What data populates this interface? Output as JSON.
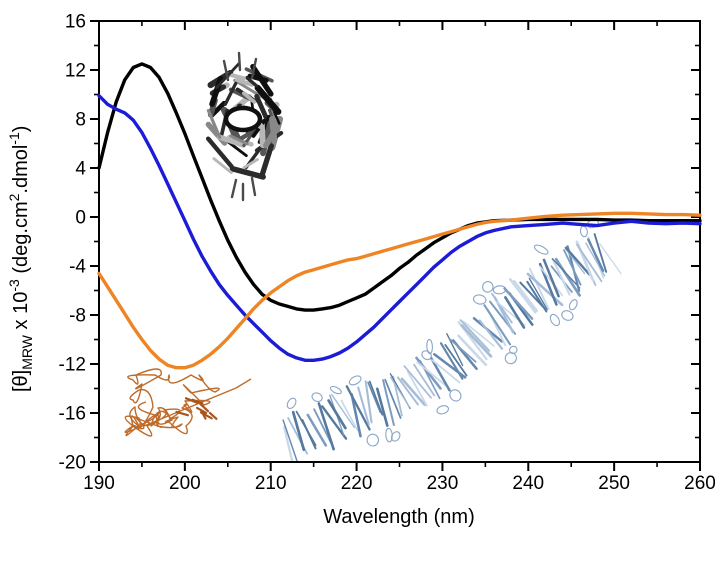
{
  "figure": {
    "background": "#ffffff",
    "type_note": "circular dichroism spectra figure, no legend, box axes with inward top/right ticks"
  },
  "x_axis": {
    "label": "Wavelength (nm)",
    "range": [
      190,
      260
    ],
    "ticks_major": [
      190,
      200,
      210,
      220,
      230,
      240,
      250,
      260
    ],
    "ticks_minor": [
      195,
      205,
      215,
      225,
      235,
      245,
      255
    ]
  },
  "y_axis": {
    "label_text": "[θ]MRW x 10-3 (deg.cm2.dmol-1)",
    "label_parts": {
      "p1": "[θ]",
      "sub": "MRW",
      "p2": " x 10",
      "sup1": "-3",
      "p3": " (deg.cm",
      "sup2": "2",
      "p4": ".dmol",
      "sup3": "-1",
      "p5": ")"
    },
    "range": [
      -20,
      16
    ],
    "ticks_major": [
      16,
      12,
      8,
      4,
      0,
      -4,
      -8,
      -12,
      -16,
      -20
    ],
    "ticks_minor": [
      14,
      10,
      6,
      2,
      -2,
      -6,
      -10,
      -14,
      -18
    ]
  },
  "chart_data": {
    "type": "line",
    "title": "",
    "xlabel": "Wavelength (nm)",
    "ylabel": "[θ]MRW x 10-3 (deg.cm2.dmol-1)",
    "xlim": [
      190,
      260
    ],
    "ylim": [
      -20,
      16
    ],
    "grid": false,
    "legend": "none",
    "series": [
      {
        "name": "black-spectrum-curve",
        "color": "#000000",
        "points": [
          [
            190,
            4.0
          ],
          [
            191,
            6.9
          ],
          [
            192,
            9.4
          ],
          [
            193,
            11.2
          ],
          [
            194,
            12.2
          ],
          [
            195,
            12.5
          ],
          [
            196,
            12.2
          ],
          [
            197,
            11.4
          ],
          [
            198,
            10.1
          ],
          [
            199,
            8.5
          ],
          [
            200,
            6.8
          ],
          [
            201,
            5.0
          ],
          [
            202,
            3.2
          ],
          [
            203,
            1.4
          ],
          [
            204,
            -0.3
          ],
          [
            205,
            -1.9
          ],
          [
            206,
            -3.3
          ],
          [
            207,
            -4.5
          ],
          [
            208,
            -5.5
          ],
          [
            209,
            -6.3
          ],
          [
            210,
            -6.8
          ],
          [
            211,
            -7.1
          ],
          [
            212,
            -7.3
          ],
          [
            213,
            -7.5
          ],
          [
            214,
            -7.6
          ],
          [
            215,
            -7.6
          ],
          [
            216,
            -7.5
          ],
          [
            217,
            -7.4
          ],
          [
            218,
            -7.2
          ],
          [
            219,
            -6.9
          ],
          [
            220,
            -6.6
          ],
          [
            221,
            -6.3
          ],
          [
            222,
            -5.8
          ],
          [
            223,
            -5.3
          ],
          [
            224,
            -4.8
          ],
          [
            225,
            -4.2
          ],
          [
            226,
            -3.7
          ],
          [
            227,
            -3.1
          ],
          [
            228,
            -2.6
          ],
          [
            229,
            -2.1
          ],
          [
            230,
            -1.7
          ],
          [
            231,
            -1.3
          ],
          [
            232,
            -1.0
          ],
          [
            233,
            -0.7
          ],
          [
            234,
            -0.5
          ],
          [
            235,
            -0.4
          ],
          [
            236,
            -0.3
          ],
          [
            238,
            -0.25
          ],
          [
            240,
            -0.2
          ],
          [
            242,
            -0.2
          ],
          [
            244,
            -0.2
          ],
          [
            246,
            -0.2
          ],
          [
            248,
            -0.2
          ],
          [
            250,
            -0.25
          ],
          [
            252,
            -0.25
          ],
          [
            254,
            -0.3
          ],
          [
            256,
            -0.3
          ],
          [
            258,
            -0.3
          ],
          [
            260,
            -0.3
          ]
        ]
      },
      {
        "name": "blue-spectrum-curve",
        "color": "#1c1cd6",
        "points": [
          [
            190,
            9.9
          ],
          [
            191,
            9.2
          ],
          [
            192,
            8.8
          ],
          [
            193,
            8.5
          ],
          [
            194,
            7.9
          ],
          [
            195,
            6.9
          ],
          [
            196,
            5.6
          ],
          [
            197,
            4.2
          ],
          [
            198,
            2.7
          ],
          [
            199,
            1.2
          ],
          [
            200,
            -0.3
          ],
          [
            201,
            -1.8
          ],
          [
            202,
            -3.2
          ],
          [
            203,
            -4.4
          ],
          [
            204,
            -5.5
          ],
          [
            205,
            -6.4
          ],
          [
            206,
            -7.2
          ],
          [
            207,
            -8.0
          ],
          [
            208,
            -8.7
          ],
          [
            209,
            -9.4
          ],
          [
            210,
            -10.1
          ],
          [
            211,
            -10.7
          ],
          [
            212,
            -11.2
          ],
          [
            213,
            -11.5
          ],
          [
            214,
            -11.7
          ],
          [
            215,
            -11.7
          ],
          [
            216,
            -11.6
          ],
          [
            217,
            -11.4
          ],
          [
            218,
            -11.1
          ],
          [
            219,
            -10.7
          ],
          [
            220,
            -10.2
          ],
          [
            221,
            -9.6
          ],
          [
            222,
            -9.0
          ],
          [
            223,
            -8.3
          ],
          [
            224,
            -7.6
          ],
          [
            225,
            -6.9
          ],
          [
            226,
            -6.2
          ],
          [
            227,
            -5.5
          ],
          [
            228,
            -4.8
          ],
          [
            229,
            -4.1
          ],
          [
            230,
            -3.5
          ],
          [
            231,
            -2.9
          ],
          [
            232,
            -2.4
          ],
          [
            233,
            -2.0
          ],
          [
            234,
            -1.6
          ],
          [
            235,
            -1.3
          ],
          [
            236,
            -1.1
          ],
          [
            238,
            -0.8
          ],
          [
            240,
            -0.7
          ],
          [
            242,
            -0.6
          ],
          [
            244,
            -0.5
          ],
          [
            246,
            -0.6
          ],
          [
            248,
            -0.7
          ],
          [
            250,
            -0.5
          ],
          [
            252,
            -0.35
          ],
          [
            254,
            -0.5
          ],
          [
            256,
            -0.55
          ],
          [
            258,
            -0.5
          ],
          [
            260,
            -0.55
          ]
        ]
      },
      {
        "name": "orange-spectrum-curve",
        "color": "#ee8524",
        "points": [
          [
            190,
            -4.6
          ],
          [
            191,
            -5.7
          ],
          [
            192,
            -6.8
          ],
          [
            193,
            -7.9
          ],
          [
            194,
            -9.0
          ],
          [
            195,
            -10.0
          ],
          [
            196,
            -10.9
          ],
          [
            197,
            -11.6
          ],
          [
            198,
            -12.1
          ],
          [
            199,
            -12.3
          ],
          [
            200,
            -12.3
          ],
          [
            201,
            -12.1
          ],
          [
            202,
            -11.7
          ],
          [
            203,
            -11.2
          ],
          [
            204,
            -10.6
          ],
          [
            205,
            -9.9
          ],
          [
            206,
            -9.1
          ],
          [
            207,
            -8.3
          ],
          [
            208,
            -7.5
          ],
          [
            209,
            -6.8
          ],
          [
            210,
            -6.2
          ],
          [
            211,
            -5.7
          ],
          [
            212,
            -5.2
          ],
          [
            213,
            -4.8
          ],
          [
            214,
            -4.5
          ],
          [
            215,
            -4.3
          ],
          [
            216,
            -4.1
          ],
          [
            217,
            -3.9
          ],
          [
            218,
            -3.7
          ],
          [
            219,
            -3.5
          ],
          [
            220,
            -3.4
          ],
          [
            221,
            -3.2
          ],
          [
            222,
            -3.0
          ],
          [
            223,
            -2.8
          ],
          [
            224,
            -2.6
          ],
          [
            225,
            -2.4
          ],
          [
            226,
            -2.2
          ],
          [
            227,
            -2.0
          ],
          [
            228,
            -1.8
          ],
          [
            229,
            -1.6
          ],
          [
            230,
            -1.4
          ],
          [
            231,
            -1.2
          ],
          [
            232,
            -1.0
          ],
          [
            233,
            -0.8
          ],
          [
            234,
            -0.6
          ],
          [
            235,
            -0.45
          ],
          [
            236,
            -0.35
          ],
          [
            238,
            -0.25
          ],
          [
            240,
            -0.1
          ],
          [
            242,
            0.05
          ],
          [
            244,
            0.15
          ],
          [
            246,
            0.2
          ],
          [
            248,
            0.25
          ],
          [
            250,
            0.3
          ],
          [
            252,
            0.3
          ],
          [
            254,
            0.25
          ],
          [
            256,
            0.2
          ],
          [
            258,
            0.2
          ],
          [
            260,
            0.15
          ]
        ]
      }
    ]
  },
  "illustrations": [
    {
      "name": "beta-sheet-protein-ribbon",
      "description": "grayscale folded β-sheet protein ribbon diagram with central channel, top center",
      "color": "#2e2e2e"
    },
    {
      "name": "random-coil-ribbon",
      "description": "thin orange disordered random-coil ribbon, bottom left",
      "color": "#bf6b2a"
    },
    {
      "name": "amyloid-fibril-ribbon",
      "description": "light blue twisted amyloid fibril ribbon running diagonally, bottom right",
      "color": "#7d9cc0"
    }
  ]
}
